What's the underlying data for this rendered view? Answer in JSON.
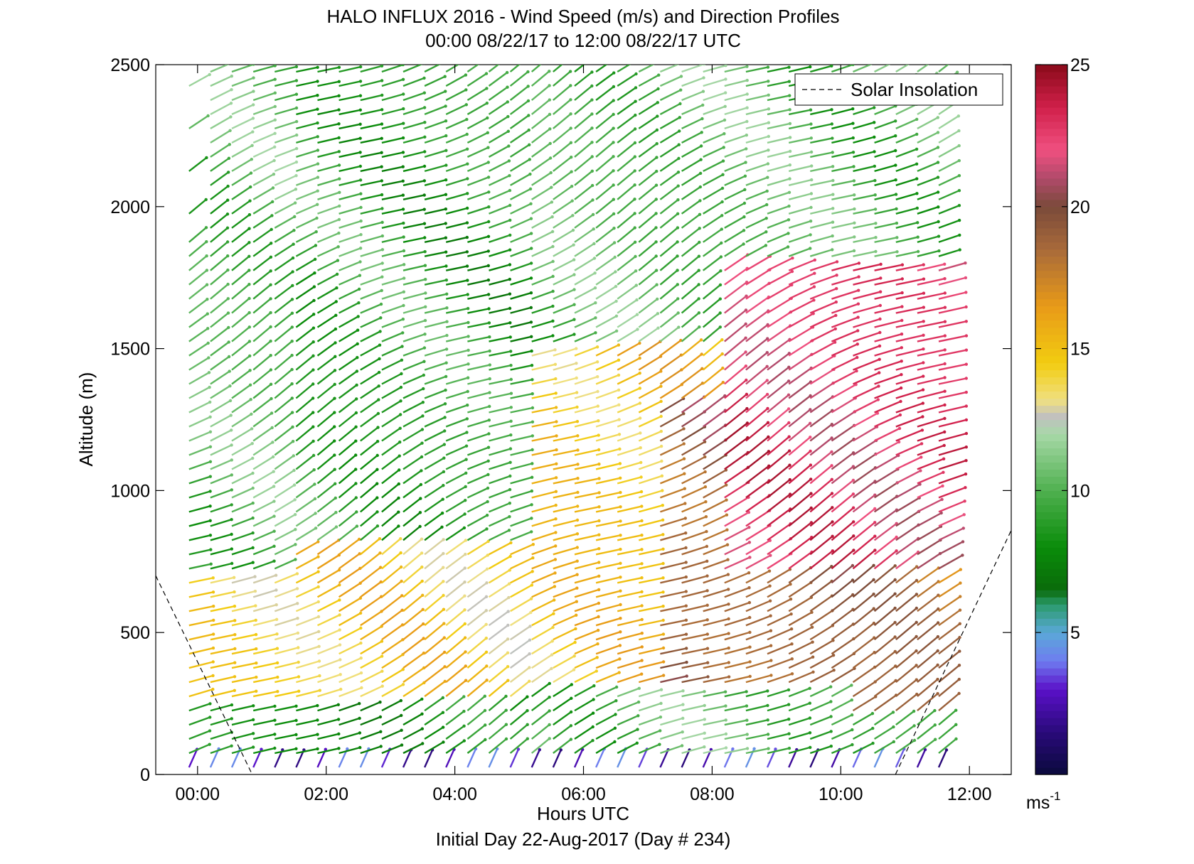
{
  "chart_data": {
    "type": "wind-barb-profile",
    "title": "HALO INFLUX 2016 - Wind Speed (m/s) and Direction Profiles",
    "subtitle": "00:00 08/22/17 to 12:00 08/22/17  UTC",
    "xlabel": "Hours UTC",
    "xlabel2": "Initial Day 22-Aug-2017 (Day # 234)",
    "ylabel": "Altitude (m)",
    "xlim": [
      -0.65,
      12.65
    ],
    "ylim": [
      0,
      2500
    ],
    "xticks": [
      {
        "value": 0,
        "label": "00:00"
      },
      {
        "value": 2,
        "label": "02:00"
      },
      {
        "value": 4,
        "label": "04:00"
      },
      {
        "value": 6,
        "label": "06:00"
      },
      {
        "value": 8,
        "label": "08:00"
      },
      {
        "value": 10,
        "label": "10:00"
      },
      {
        "value": 12,
        "label": "12:00"
      }
    ],
    "yticks": [
      {
        "value": 0,
        "label": "0"
      },
      {
        "value": 500,
        "label": "500"
      },
      {
        "value": 1000,
        "label": "1000"
      },
      {
        "value": 1500,
        "label": "1500"
      },
      {
        "value": 2000,
        "label": "2000"
      },
      {
        "value": 2500,
        "label": "2500"
      }
    ],
    "legend": {
      "position": "top-right",
      "entries": [
        {
          "label": "Solar Insolation",
          "style": "dashed",
          "color": "#000000"
        }
      ]
    },
    "solar_insolation": {
      "descending": [
        [
          -0.65,
          700
        ],
        [
          0.85,
          0
        ]
      ],
      "ascending": [
        [
          10.85,
          0
        ],
        [
          12.65,
          860
        ]
      ]
    },
    "colorbar": {
      "range": [
        0,
        25
      ],
      "ticks": [
        {
          "value": 5,
          "label": "5"
        },
        {
          "value": 10,
          "label": "10"
        },
        {
          "value": 15,
          "label": "15"
        },
        {
          "value": 20,
          "label": "20"
        },
        {
          "value": 25,
          "label": "25"
        }
      ],
      "unit_label": "ms",
      "unit_exponent": "-1",
      "stops": [
        {
          "v": 0,
          "c": "#0a0a3c"
        },
        {
          "v": 1.5,
          "c": "#2a0a7a"
        },
        {
          "v": 3,
          "c": "#5a10c8"
        },
        {
          "v": 4,
          "c": "#6f7cf0"
        },
        {
          "v": 5,
          "c": "#5aa8d8"
        },
        {
          "v": 6,
          "c": "#2a9a6a"
        },
        {
          "v": 6.5,
          "c": "#0a6a0a"
        },
        {
          "v": 8,
          "c": "#0a8c0a"
        },
        {
          "v": 10,
          "c": "#4fb04f"
        },
        {
          "v": 12,
          "c": "#a8d8a8"
        },
        {
          "v": 12.6,
          "c": "#c0c0c0"
        },
        {
          "v": 13.2,
          "c": "#f0e080"
        },
        {
          "v": 14.5,
          "c": "#f2cc10"
        },
        {
          "v": 16.5,
          "c": "#e89a18"
        },
        {
          "v": 18.5,
          "c": "#a86a3a"
        },
        {
          "v": 20,
          "c": "#7a4a3a"
        },
        {
          "v": 21,
          "c": "#b04a6a"
        },
        {
          "v": 22,
          "c": "#f05080"
        },
        {
          "v": 23.5,
          "c": "#d0204a"
        },
        {
          "v": 25,
          "c": "#8a0a1a"
        }
      ]
    },
    "time_range_hours": [
      0,
      11.75
    ],
    "time_step_hours": 0.333,
    "altitude_step_m": 50,
    "regions_speed_ms": [
      {
        "hours": [
          0,
          1.5
        ],
        "alt_m": [
          0,
          250
        ],
        "speed": 8
      },
      {
        "hours": [
          0,
          1.5
        ],
        "alt_m": [
          250,
          700
        ],
        "speed": 14.5
      },
      {
        "hours": [
          0,
          1.5
        ],
        "alt_m": [
          700,
          2500
        ],
        "speed": 10
      },
      {
        "hours": [
          1.5,
          5
        ],
        "alt_m": [
          0,
          250
        ],
        "speed": 8
      },
      {
        "hours": [
          1.5,
          5
        ],
        "alt_m": [
          250,
          800
        ],
        "speed": 14.5
      },
      {
        "hours": [
          1.5,
          5
        ],
        "alt_m": [
          800,
          2500
        ],
        "speed": 9
      },
      {
        "hours": [
          5,
          8
        ],
        "alt_m": [
          300,
          1500
        ],
        "speed": 15
      },
      {
        "hours": [
          7,
          10
        ],
        "alt_m": [
          300,
          1300
        ],
        "speed": 19
      },
      {
        "hours": [
          8,
          11.75
        ],
        "alt_m": [
          700,
          1800
        ],
        "speed": 22.5
      },
      {
        "hours": [
          10,
          11.75
        ],
        "alt_m": [
          200,
          700
        ],
        "speed": 18.5
      },
      {
        "hours": [
          10,
          11.75
        ],
        "alt_m": [
          0,
          200
        ],
        "speed": 9
      }
    ]
  }
}
